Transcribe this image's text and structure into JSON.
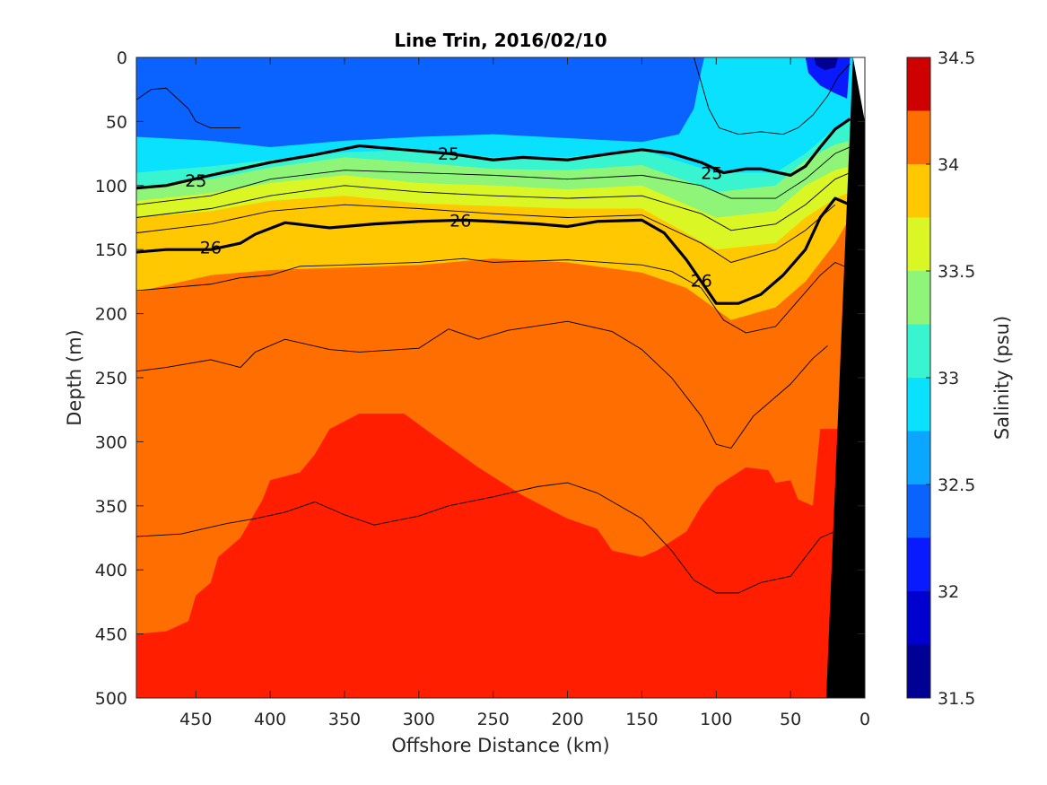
{
  "chart_data": {
    "type": "heatmap",
    "title": "Line Trin, 2016/02/10",
    "xlabel": "Offshore Distance (km)",
    "ylabel": "Depth (m)",
    "colorbar_label": "Salinity (psu)",
    "x_reversed": true,
    "y_reversed": true,
    "xlim": [
      0,
      490
    ],
    "ylim": [
      0,
      500
    ],
    "x_ticks": [
      450,
      400,
      350,
      300,
      250,
      200,
      150,
      100,
      50,
      0
    ],
    "y_ticks": [
      0,
      50,
      100,
      150,
      200,
      250,
      300,
      350,
      400,
      450,
      500
    ],
    "colorbar": {
      "range": [
        31.5,
        34.5
      ],
      "ticks": [
        31.5,
        32,
        32.5,
        33,
        33.5,
        34,
        34.5
      ],
      "levels": [
        {
          "from": 31.5,
          "to": 31.75,
          "color": "#000095"
        },
        {
          "from": 31.75,
          "to": 32.0,
          "color": "#0000cf"
        },
        {
          "from": 32.0,
          "to": 32.25,
          "color": "#0a1aff"
        },
        {
          "from": 32.25,
          "to": 32.5,
          "color": "#0a62ff"
        },
        {
          "from": 32.5,
          "to": 32.75,
          "color": "#0aa6ff"
        },
        {
          "from": 32.75,
          "to": 33.0,
          "color": "#0ae1ff"
        },
        {
          "from": 33.0,
          "to": 33.25,
          "color": "#38f4cf"
        },
        {
          "from": 33.25,
          "to": 33.5,
          "color": "#8ef578"
        },
        {
          "from": 33.5,
          "to": 33.75,
          "color": "#daf725"
        },
        {
          "from": 33.75,
          "to": 34.0,
          "color": "#ffc800"
        },
        {
          "from": 34.0,
          "to": 34.25,
          "color": "#ff6e00"
        },
        {
          "from": 34.25,
          "to": 34.5,
          "color": "#ff1e00"
        }
      ],
      "top_color": "#cf0000"
    },
    "salinity_boundaries": [
      {
        "upper": 32.5,
        "lower_salinity": 32.75,
        "color": "#0aa6ff",
        "depth": [
          [
            490,
            62
          ],
          [
            440,
            65
          ],
          [
            400,
            70
          ],
          [
            350,
            65
          ],
          [
            300,
            62
          ],
          [
            250,
            60
          ],
          [
            200,
            63
          ],
          [
            150,
            66
          ],
          [
            125,
            60
          ],
          [
            115,
            40
          ],
          [
            110,
            10
          ],
          [
            108,
            0
          ]
        ]
      },
      {
        "upper": 32.75,
        "lower_salinity": 33.0,
        "color": "#0ae1ff",
        "depth": [
          [
            490,
            90
          ],
          [
            470,
            88
          ],
          [
            440,
            85
          ],
          [
            400,
            80
          ],
          [
            350,
            74
          ],
          [
            300,
            72
          ],
          [
            250,
            78
          ],
          [
            200,
            78
          ],
          [
            150,
            72
          ],
          [
            100,
            90
          ],
          [
            60,
            90
          ],
          [
            40,
            75
          ],
          [
            20,
            55
          ],
          [
            10,
            48
          ]
        ]
      },
      {
        "upper": 33.0,
        "lower_salinity": 33.25,
        "color": "#38f4cf",
        "depth": [
          [
            490,
            102
          ],
          [
            440,
            95
          ],
          [
            400,
            86
          ],
          [
            350,
            78
          ],
          [
            300,
            82
          ],
          [
            250,
            87
          ],
          [
            200,
            88
          ],
          [
            150,
            84
          ],
          [
            100,
            105
          ],
          [
            60,
            100
          ],
          [
            40,
            80
          ],
          [
            20,
            68
          ],
          [
            10,
            65
          ]
        ]
      },
      {
        "upper": 33.25,
        "lower_salinity": 33.5,
        "color": "#8ef578",
        "depth": [
          [
            490,
            112
          ],
          [
            440,
            106
          ],
          [
            400,
            98
          ],
          [
            350,
            92
          ],
          [
            300,
            98
          ],
          [
            250,
            100
          ],
          [
            200,
            103
          ],
          [
            150,
            100
          ],
          [
            100,
            125
          ],
          [
            60,
            120
          ],
          [
            40,
            100
          ],
          [
            20,
            88
          ],
          [
            10,
            85
          ]
        ]
      },
      {
        "upper": 33.5,
        "lower_salinity": 33.75,
        "color": "#daf725",
        "depth": [
          [
            490,
            125
          ],
          [
            440,
            120
          ],
          [
            400,
            112
          ],
          [
            350,
            108
          ],
          [
            300,
            114
          ],
          [
            250,
            116
          ],
          [
            200,
            118
          ],
          [
            150,
            118
          ],
          [
            100,
            150
          ],
          [
            60,
            145
          ],
          [
            40,
            125
          ],
          [
            20,
            110
          ],
          [
            10,
            105
          ]
        ]
      },
      {
        "upper": 33.75,
        "lower_salinity": 34.0,
        "color": "#ffc800",
        "depth": [
          [
            490,
            183
          ],
          [
            440,
            170
          ],
          [
            400,
            166
          ],
          [
            350,
            164
          ],
          [
            300,
            162
          ],
          [
            250,
            157
          ],
          [
            200,
            160
          ],
          [
            150,
            168
          ],
          [
            120,
            180
          ],
          [
            90,
            205
          ],
          [
            60,
            195
          ],
          [
            40,
            175
          ],
          [
            20,
            145
          ],
          [
            10,
            125
          ]
        ]
      },
      {
        "upper": 34.0,
        "lower_salinity": 34.25,
        "color": "#ff6e00",
        "depth": [
          [
            490,
            450
          ],
          [
            470,
            448
          ],
          [
            455,
            440
          ],
          [
            450,
            420
          ],
          [
            440,
            410
          ],
          [
            435,
            390
          ],
          [
            420,
            375
          ],
          [
            405,
            345
          ],
          [
            400,
            330
          ],
          [
            380,
            324
          ],
          [
            370,
            310
          ],
          [
            360,
            290
          ],
          [
            340,
            278
          ],
          [
            310,
            278
          ],
          [
            290,
            295
          ],
          [
            260,
            320
          ],
          [
            230,
            342
          ],
          [
            200,
            360
          ],
          [
            180,
            368
          ],
          [
            170,
            385
          ],
          [
            150,
            390
          ],
          [
            140,
            385
          ],
          [
            120,
            370
          ],
          [
            110,
            350
          ],
          [
            100,
            335
          ],
          [
            80,
            320
          ],
          [
            65,
            322
          ],
          [
            60,
            332
          ],
          [
            50,
            330
          ],
          [
            45,
            345
          ],
          [
            35,
            350
          ],
          [
            30,
            290
          ],
          [
            15,
            290
          ],
          [
            10,
            300
          ]
        ]
      }
    ],
    "bathymetry": {
      "color": "#000000",
      "profile": [
        [
          0,
          0
        ],
        [
          0,
          500
        ],
        [
          26,
          500
        ],
        [
          30,
          300
        ],
        [
          8,
          0
        ]
      ]
    },
    "isopycnals": [
      {
        "label": "25",
        "bold": true,
        "points": [
          [
            490,
            102
          ],
          [
            470,
            100
          ],
          [
            440,
            92
          ],
          [
            400,
            82
          ],
          [
            370,
            76
          ],
          [
            340,
            69
          ],
          [
            310,
            72
          ],
          [
            280,
            75
          ],
          [
            250,
            80
          ],
          [
            230,
            78
          ],
          [
            200,
            80
          ],
          [
            170,
            75
          ],
          [
            150,
            72
          ],
          [
            130,
            75
          ],
          [
            110,
            82
          ],
          [
            95,
            90
          ],
          [
            80,
            87
          ],
          [
            70,
            87
          ],
          [
            50,
            92
          ],
          [
            40,
            85
          ],
          [
            30,
            70
          ],
          [
            20,
            56
          ],
          [
            10,
            48
          ]
        ]
      },
      {
        "label": "26",
        "bold": true,
        "points": [
          [
            490,
            152
          ],
          [
            470,
            150
          ],
          [
            440,
            150
          ],
          [
            420,
            145
          ],
          [
            410,
            138
          ],
          [
            390,
            129
          ],
          [
            360,
            133
          ],
          [
            330,
            130
          ],
          [
            300,
            128
          ],
          [
            270,
            127
          ],
          [
            250,
            128
          ],
          [
            220,
            130
          ],
          [
            200,
            132
          ],
          [
            180,
            128
          ],
          [
            150,
            127
          ],
          [
            135,
            137
          ],
          [
            120,
            158
          ],
          [
            110,
            175
          ],
          [
            100,
            192
          ],
          [
            85,
            192
          ],
          [
            70,
            185
          ],
          [
            55,
            170
          ],
          [
            40,
            150
          ],
          [
            30,
            125
          ],
          [
            20,
            110
          ],
          [
            10,
            115
          ]
        ]
      }
    ],
    "contour_labels": [
      {
        "text": "25",
        "x": 280,
        "y": 75
      },
      {
        "text": "25",
        "x": 450,
        "y": 96
      },
      {
        "text": "25",
        "x": 103,
        "y": 90
      },
      {
        "text": "26",
        "x": 272,
        "y": 127
      },
      {
        "text": "26",
        "x": 440,
        "y": 148
      },
      {
        "text": "26",
        "x": 110,
        "y": 174
      }
    ],
    "thin_contours": [
      [
        [
          490,
          115
        ],
        [
          440,
          108
        ],
        [
          400,
          95
        ],
        [
          350,
          88
        ],
        [
          300,
          90
        ],
        [
          250,
          92
        ],
        [
          200,
          95
        ],
        [
          150,
          92
        ],
        [
          110,
          100
        ],
        [
          90,
          110
        ],
        [
          60,
          110
        ],
        [
          40,
          95
        ],
        [
          20,
          75
        ],
        [
          10,
          70
        ]
      ],
      [
        [
          490,
          125
        ],
        [
          440,
          118
        ],
        [
          400,
          108
        ],
        [
          350,
          100
        ],
        [
          300,
          105
        ],
        [
          250,
          108
        ],
        [
          200,
          110
        ],
        [
          150,
          108
        ],
        [
          110,
          122
        ],
        [
          90,
          135
        ],
        [
          60,
          130
        ],
        [
          40,
          115
        ],
        [
          20,
          95
        ],
        [
          10,
          90
        ]
      ],
      [
        [
          490,
          137
        ],
        [
          440,
          130
        ],
        [
          400,
          120
        ],
        [
          350,
          115
        ],
        [
          300,
          118
        ],
        [
          250,
          122
        ],
        [
          200,
          125
        ],
        [
          150,
          123
        ],
        [
          110,
          145
        ],
        [
          90,
          160
        ],
        [
          60,
          150
        ],
        [
          40,
          135
        ],
        [
          20,
          115
        ]
      ],
      [
        [
          490,
          182
        ],
        [
          440,
          177
        ],
        [
          420,
          172
        ],
        [
          400,
          170
        ],
        [
          380,
          163
        ],
        [
          350,
          162
        ],
        [
          300,
          160
        ],
        [
          270,
          157
        ],
        [
          250,
          160
        ],
        [
          200,
          158
        ],
        [
          150,
          162
        ],
        [
          130,
          167
        ],
        [
          110,
          180
        ],
        [
          95,
          205
        ],
        [
          80,
          215
        ],
        [
          60,
          210
        ],
        [
          45,
          190
        ],
        [
          30,
          170
        ],
        [
          20,
          160
        ],
        [
          10,
          165
        ]
      ],
      [
        [
          490,
          245
        ],
        [
          470,
          242
        ],
        [
          440,
          236
        ],
        [
          420,
          242
        ],
        [
          410,
          230
        ],
        [
          390,
          220
        ],
        [
          360,
          228
        ],
        [
          340,
          230
        ],
        [
          300,
          227
        ],
        [
          280,
          212
        ],
        [
          260,
          220
        ],
        [
          240,
          213
        ],
        [
          200,
          206
        ],
        [
          170,
          214
        ],
        [
          150,
          228
        ],
        [
          130,
          250
        ],
        [
          110,
          280
        ],
        [
          100,
          302
        ],
        [
          90,
          305
        ],
        [
          75,
          280
        ],
        [
          50,
          255
        ],
        [
          35,
          235
        ],
        [
          25,
          225
        ]
      ],
      [
        [
          490,
          374
        ],
        [
          460,
          372
        ],
        [
          430,
          364
        ],
        [
          410,
          360
        ],
        [
          390,
          355
        ],
        [
          370,
          347
        ],
        [
          350,
          357
        ],
        [
          330,
          365
        ],
        [
          300,
          358
        ],
        [
          280,
          350
        ],
        [
          250,
          343
        ],
        [
          220,
          335
        ],
        [
          200,
          332
        ],
        [
          180,
          340
        ],
        [
          150,
          360
        ],
        [
          130,
          385
        ],
        [
          115,
          408
        ],
        [
          100,
          418
        ],
        [
          85,
          418
        ],
        [
          70,
          410
        ],
        [
          50,
          405
        ],
        [
          40,
          390
        ],
        [
          30,
          375
        ],
        [
          20,
          370
        ],
        [
          15,
          378
        ]
      ],
      [
        [
          490,
          33
        ],
        [
          480,
          25
        ],
        [
          470,
          24
        ],
        [
          455,
          40
        ],
        [
          450,
          50
        ],
        [
          440,
          55
        ],
        [
          420,
          55
        ]
      ],
      [
        [
          115,
          0
        ],
        [
          110,
          20
        ],
        [
          105,
          40
        ],
        [
          98,
          55
        ],
        [
          85,
          60
        ],
        [
          70,
          58
        ],
        [
          55,
          60
        ],
        [
          45,
          55
        ],
        [
          35,
          45
        ],
        [
          25,
          30
        ],
        [
          18,
          15
        ],
        [
          10,
          5
        ]
      ]
    ]
  }
}
